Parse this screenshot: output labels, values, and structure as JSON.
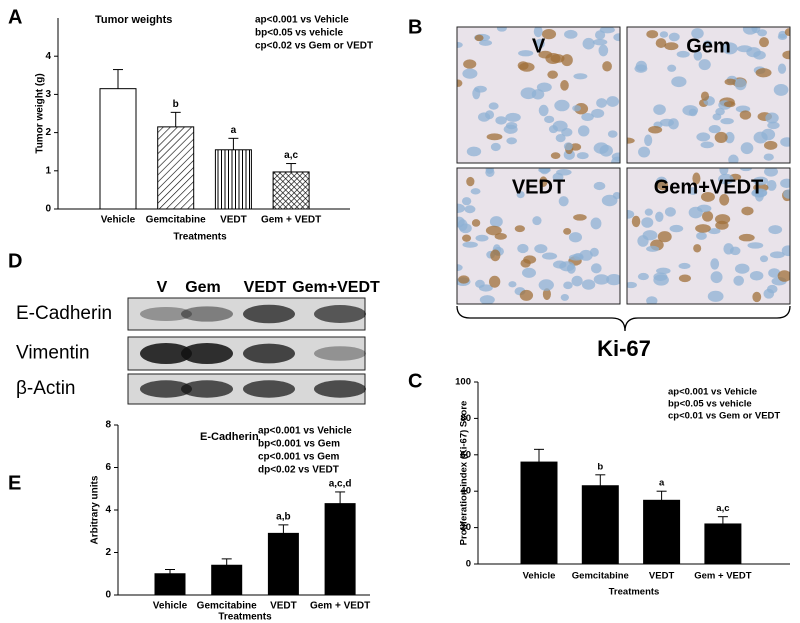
{
  "panels": [
    "A",
    "B",
    "C",
    "D",
    "E"
  ],
  "chart_data": [
    {
      "type": "bar",
      "title": "Tumor weights",
      "annotations": [
        "ap<0.001 vs Vehicle",
        "bp<0.05 vs vehicle",
        "cp<0.02 vs Gem or VEDT"
      ],
      "y_label": "Tumor weight (g)",
      "x_label": "Treatments",
      "categories": [
        "Vehicle",
        "Gemcitabine",
        "VEDT",
        "Gem + VEDT"
      ],
      "values": [
        3.15,
        2.15,
        1.55,
        0.97
      ],
      "errors": [
        0.5,
        0.38,
        0.3,
        0.22
      ],
      "bar_labels": [
        null,
        "b",
        "a",
        "a,c"
      ],
      "fills": [
        "none",
        "diagonal",
        "vertical",
        "crosshatch"
      ],
      "ylim": [
        0,
        5
      ],
      "yticks": [
        0,
        1,
        2,
        3,
        4
      ]
    },
    {
      "type": "bar",
      "annotations": [
        "ap<0.001 vs Vehicle",
        "bp<0.05 vs vehicle",
        "cp<0.01 vs Gem or VEDT"
      ],
      "y_label": "Proliferation index (Ki-67) Score",
      "x_label": "Treatments",
      "categories": [
        "Vehicle",
        "Gemcitabine",
        "VEDT",
        "Gem + VEDT"
      ],
      "values": [
        56,
        43,
        35,
        22
      ],
      "errors": [
        7,
        6,
        5,
        4
      ],
      "bar_labels": [
        null,
        "b",
        "a",
        "a,c"
      ],
      "fills": [
        "solid",
        "solid",
        "solid",
        "solid"
      ],
      "ylim": [
        0,
        100
      ],
      "yticks": [
        0,
        20,
        40,
        60,
        80,
        100
      ]
    },
    {
      "type": "bar",
      "title": "E-Cadherin",
      "annotations": [
        "ap<0.001 vs Vehicle",
        "bp<0.001 vs Gem",
        "cp<0.001 vs Gem",
        "dp<0.02 vs VEDT"
      ],
      "y_label": "Arbitrary units",
      "x_label": "Treatments",
      "categories": [
        "Vehicle",
        "Gemcitabine",
        "VEDT",
        "Gem + VEDT"
      ],
      "values": [
        1.0,
        1.4,
        2.9,
        4.3
      ],
      "errors": [
        0.2,
        0.3,
        0.4,
        0.55
      ],
      "bar_labels": [
        null,
        null,
        "a,b",
        "a,c,d"
      ],
      "fills": [
        "solid",
        "solid",
        "solid",
        "solid"
      ],
      "ylim": [
        0,
        8
      ],
      "yticks": [
        0,
        2,
        4,
        6,
        8
      ]
    }
  ],
  "micrographs": {
    "labels": [
      "V",
      "Gem",
      "VEDT",
      "Gem+VEDT"
    ],
    "caption": "Ki-67"
  },
  "blot": {
    "columns": [
      "V",
      "Gem",
      "VEDT",
      "Gem+VEDT"
    ],
    "rows": [
      "E-Cadherin",
      "Vimentin",
      "β-Actin"
    ]
  }
}
